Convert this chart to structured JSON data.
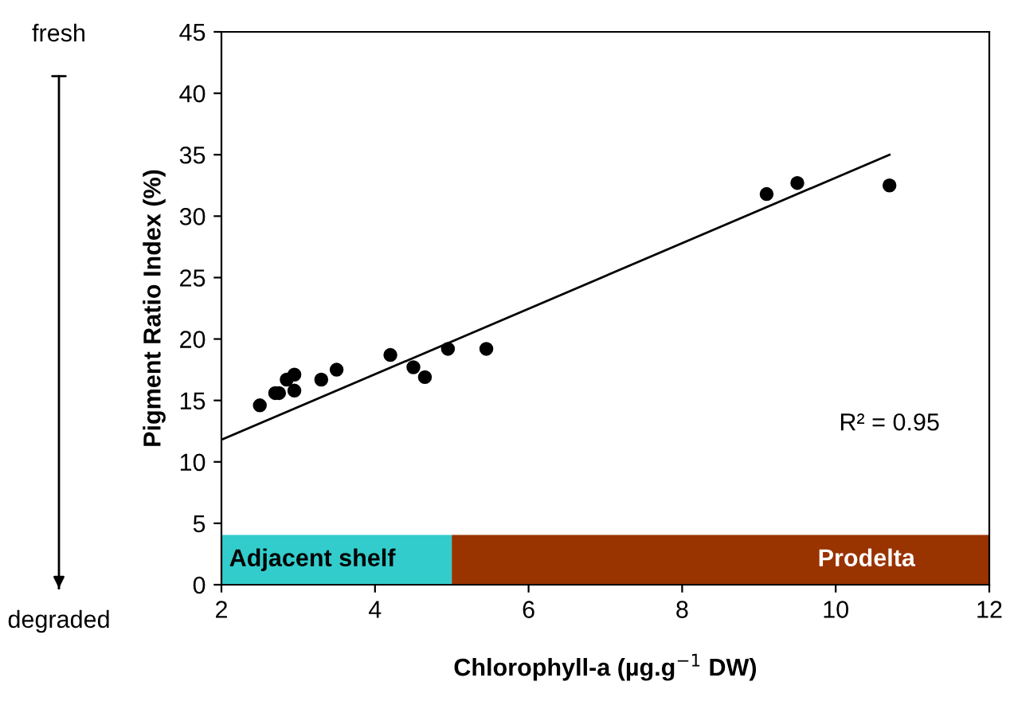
{
  "chart_data": {
    "type": "scatter",
    "xlabel": "Chlorophyll-a (µg.g$^{−1}$ DW)",
    "ylabel": "Pigment Ratio Index (%)",
    "xlim": [
      2,
      12
    ],
    "xticks": [
      2,
      4,
      6,
      8,
      10,
      12
    ],
    "ylim": [
      0,
      45
    ],
    "yticks": [
      0,
      5,
      10,
      15,
      20,
      25,
      30,
      35,
      40,
      45
    ],
    "grid": false,
    "legend": false,
    "series": [
      {
        "marker": "circle",
        "color": "#000000",
        "x": [
          2.5,
          2.7,
          2.75,
          2.85,
          2.95,
          2.95,
          3.3,
          3.5,
          4.2,
          4.5,
          4.65,
          4.95,
          5.45,
          9.1,
          9.5,
          10.7
        ],
        "values": [
          14.6,
          15.6,
          15.6,
          16.7,
          17.1,
          15.8,
          16.7,
          17.5,
          18.7,
          17.7,
          16.9,
          19.2,
          19.2,
          31.8,
          32.7,
          32.5
        ]
      },
      {
        "type": "line",
        "color": "#000000",
        "x": [
          2,
          10.7
        ],
        "values": [
          11.8,
          35
        ]
      }
    ],
    "bands": [
      {
        "axis": "x",
        "from": 2,
        "to": 5,
        "label": "Adjacent shelf",
        "color": "#33cccc"
      },
      {
        "axis": "x",
        "from": 5,
        "to": 12,
        "label": "Prodelta",
        "color": "#993300"
      }
    ],
    "annotations": [
      "R² = 0.95",
      "fresh",
      "degraded"
    ]
  }
}
